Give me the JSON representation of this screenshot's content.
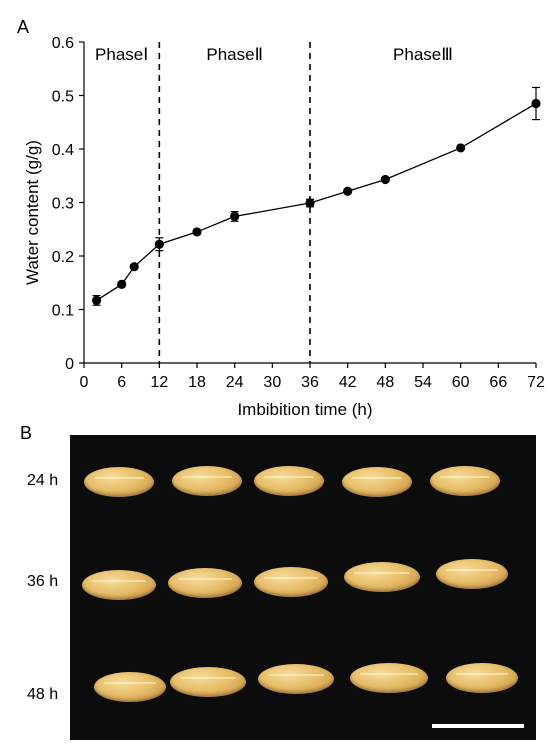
{
  "panels": {
    "a": "A",
    "b": "B"
  },
  "chart_data": {
    "type": "line",
    "xlabel": "Imbibition time (h)",
    "ylabel": "Water content (g/g)",
    "xlim": [
      0,
      72
    ],
    "ylim": [
      0,
      0.6
    ],
    "xticks": [
      0,
      6,
      12,
      18,
      24,
      30,
      36,
      42,
      48,
      54,
      60,
      66,
      72
    ],
    "xtick_labels": [
      "0",
      "6",
      "12",
      "18",
      "24",
      "30",
      "36",
      "42",
      "48",
      "54",
      "60",
      "66",
      "72"
    ],
    "yticks": [
      0,
      0.1,
      0.2,
      0.3,
      0.4,
      0.5,
      0.6
    ],
    "ytick_labels": [
      "0",
      "0.1",
      "0.2",
      "0.3",
      "0.4",
      "0.5",
      "0.6"
    ],
    "grid": false,
    "series": [
      {
        "x": [
          2,
          6,
          8,
          12,
          18,
          24,
          36,
          42,
          48,
          60,
          72
        ],
        "y": [
          0.117,
          0.147,
          0.18,
          0.222,
          0.245,
          0.274,
          0.299,
          0.321,
          0.343,
          0.402,
          0.485
        ],
        "error": [
          0.009,
          0.004,
          0.003,
          0.012,
          0.004,
          0.009,
          0.007,
          0.003,
          0.003,
          0.003,
          0.03
        ]
      }
    ],
    "phase_dividers": [
      12,
      36
    ],
    "phase_labels": [
      "PhaseⅠ",
      "PhaseⅡ",
      "PhaseⅢ"
    ]
  },
  "photo": {
    "row_labels": [
      "24 h",
      "36 h",
      "48 h"
    ],
    "background": "#0c0c0c",
    "grain_color": "#e7be69",
    "scale_bar_color": "#ffffff"
  }
}
